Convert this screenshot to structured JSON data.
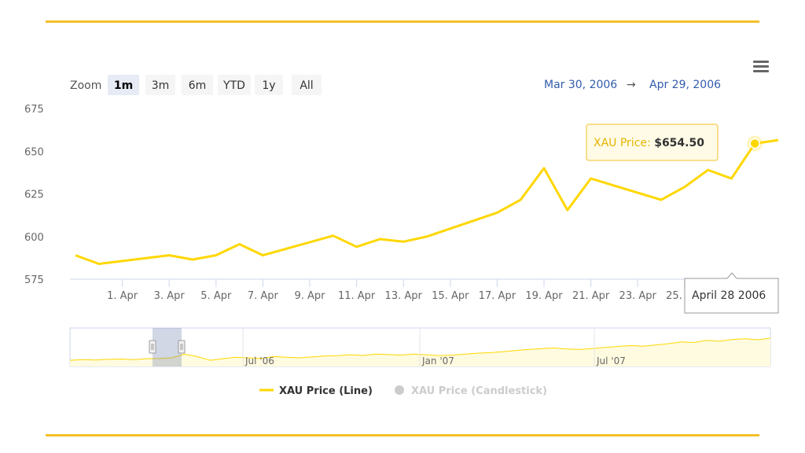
{
  "chart_data": {
    "type": "line",
    "title": "",
    "range_selector": {
      "label": "Zoom",
      "buttons": [
        "1m",
        "3m",
        "6m",
        "YTD",
        "1y",
        "All"
      ],
      "selected": "1m"
    },
    "range_display": {
      "from": "Mar 30, 2006",
      "arrow": "→",
      "to": "Apr 29, 2006"
    },
    "y_axis": {
      "ticks": [
        575,
        600,
        625,
        650,
        675
      ],
      "ylim": [
        575,
        675
      ]
    },
    "x_axis": {
      "ticks": [
        "1. Apr",
        "3. Apr",
        "5. Apr",
        "7. Apr",
        "9. Apr",
        "11. Apr",
        "13. Apr",
        "15. Apr",
        "17. Apr",
        "19. Apr",
        "21. Apr",
        "23. Apr",
        "25. Apr"
      ],
      "xlim": [
        "2006-03-30",
        "2006-04-29"
      ]
    },
    "series": [
      {
        "name": "XAU Price (Line)",
        "color": "#ffd700",
        "x": [
          "2006-03-30",
          "2006-03-31",
          "2006-04-03",
          "2006-04-04",
          "2006-04-05",
          "2006-04-06",
          "2006-04-07",
          "2006-04-10",
          "2006-04-11",
          "2006-04-12",
          "2006-04-13",
          "2006-04-14",
          "2006-04-17",
          "2006-04-18",
          "2006-04-19",
          "2006-04-20",
          "2006-04-21",
          "2006-04-24",
          "2006-04-25",
          "2006-04-26",
          "2006-04-27",
          "2006-04-28",
          "2006-04-29"
        ],
        "values": [
          589,
          584,
          589,
          586.5,
          589,
          595.5,
          589,
          600.5,
          594,
          598.5,
          597,
          600,
          614,
          621.5,
          640,
          615.5,
          634,
          621.5,
          629,
          639,
          634,
          654.5,
          656.5
        ]
      },
      {
        "name": "XAU Price (Candlestick)",
        "color": "#cccccc",
        "visible": false
      }
    ],
    "tooltip": {
      "series_label": "XAU Price",
      "value": "$654.50",
      "date": "April 28 2006"
    },
    "navigator": {
      "ticks": [
        "Jul '06",
        "Jan '07",
        "Jul '07"
      ],
      "line": [
        0.1,
        0.12,
        0.11,
        0.13,
        0.14,
        0.12,
        0.15,
        0.16,
        0.18,
        0.3,
        0.22,
        0.1,
        0.15,
        0.2,
        0.18,
        0.16,
        0.22,
        0.2,
        0.18,
        0.21,
        0.24,
        0.25,
        0.28,
        0.26,
        0.3,
        0.29,
        0.27,
        0.3,
        0.28,
        0.25,
        0.27,
        0.3,
        0.33,
        0.35,
        0.38,
        0.42,
        0.45,
        0.48,
        0.5,
        0.47,
        0.45,
        0.48,
        0.52,
        0.55,
        0.58,
        0.56,
        0.6,
        0.64,
        0.7,
        0.68,
        0.75,
        0.72,
        0.78,
        0.8,
        0.77,
        0.82
      ]
    },
    "legend": {
      "placement": "bottom-center"
    }
  }
}
